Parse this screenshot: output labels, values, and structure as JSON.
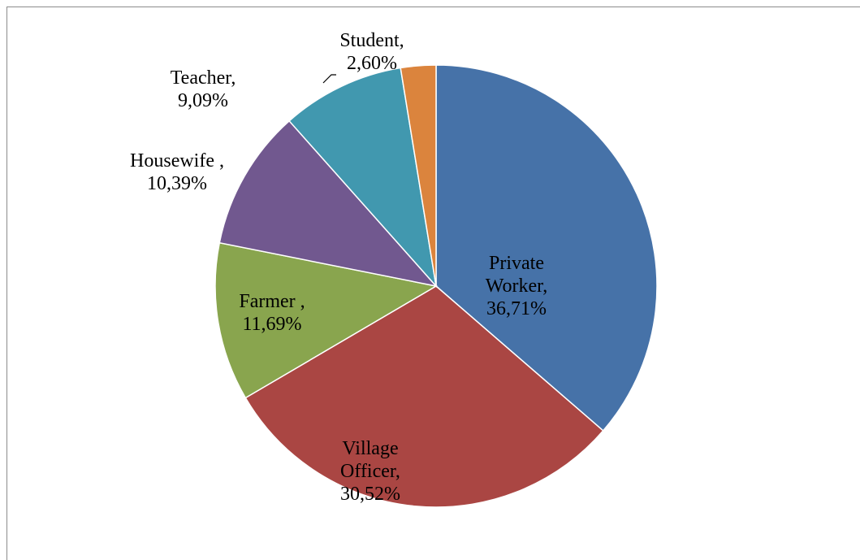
{
  "chart_data": {
    "type": "pie",
    "categories": [
      "Private Worker,",
      "Village Officer,",
      "Farmer ,",
      "Housewife ,",
      "Teacher,",
      "Student,"
    ],
    "values": [
      36.71,
      30.52,
      11.69,
      10.39,
      9.09,
      2.6
    ],
    "value_labels": [
      "36,71%",
      "30,52%",
      "11,69%",
      "10,39%",
      "9,09%",
      "2,60%"
    ],
    "colors": [
      "#4672a8",
      "#aa4643",
      "#89a54e",
      "#71588f",
      "#4198af",
      "#db843d"
    ]
  }
}
